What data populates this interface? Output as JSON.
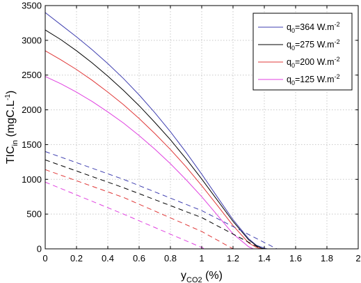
{
  "chart_data": {
    "type": "line",
    "xlabel": {
      "base": "y",
      "sub": "CO2",
      "tail": " (%)"
    },
    "ylabel": {
      "base": "TIC",
      "sub": "in",
      "mid": " (mgC.L",
      "sup": "-1",
      "tail": ")"
    },
    "xlim": [
      0,
      2
    ],
    "ylim": [
      0,
      3500
    ],
    "xticks": [
      "0",
      "0.2",
      "0.4",
      "0.6",
      "0.8",
      "1",
      "1.2",
      "1.4",
      "1.6",
      "1.8",
      "2"
    ],
    "yticks": [
      "0",
      "500",
      "1000",
      "1500",
      "2000",
      "2500",
      "3000",
      "3500"
    ],
    "grid": true,
    "legend_position": "top-right",
    "series": [
      {
        "name": "q0=364 W.m-2",
        "label": {
          "base": "q",
          "sub": "0",
          "mid": "=364 W.m",
          "sup": "-2"
        },
        "color": "#3f3fb0",
        "style": "solid",
        "x": [
          0,
          0.1,
          0.2,
          0.3,
          0.4,
          0.5,
          0.6,
          0.7,
          0.8,
          0.9,
          1.0,
          1.1,
          1.2,
          1.3,
          1.35,
          1.4,
          1.42,
          2.0
        ],
        "y": [
          3400,
          3225,
          3050,
          2865,
          2665,
          2450,
          2215,
          1960,
          1685,
          1390,
          1075,
          745,
          420,
          145,
          50,
          10,
          0,
          0
        ]
      },
      {
        "name": "q0=275 W.m-2",
        "label": {
          "base": "q",
          "sub": "0",
          "mid": "=275 W.m",
          "sup": "-2"
        },
        "color": "#000000",
        "style": "solid",
        "x": [
          0,
          0.1,
          0.2,
          0.3,
          0.4,
          0.5,
          0.6,
          0.7,
          0.8,
          0.9,
          1.0,
          1.1,
          1.2,
          1.3,
          1.35,
          1.38,
          1.4,
          2.0
        ],
        "y": [
          3150,
          3010,
          2850,
          2675,
          2485,
          2280,
          2060,
          1820,
          1570,
          1295,
          1005,
          700,
          395,
          130,
          45,
          10,
          0,
          0
        ]
      },
      {
        "name": "q0=200 W.m-2",
        "label": {
          "base": "q",
          "sub": "0",
          "mid": "=200 W.m",
          "sup": "-2"
        },
        "color": "#e03838",
        "style": "solid",
        "x": [
          0,
          0.1,
          0.2,
          0.3,
          0.4,
          0.5,
          0.6,
          0.7,
          0.8,
          0.9,
          1.0,
          1.1,
          1.2,
          1.3,
          1.35,
          1.38,
          2.0
        ],
        "y": [
          2850,
          2720,
          2580,
          2425,
          2255,
          2075,
          1875,
          1660,
          1430,
          1180,
          910,
          625,
          335,
          85,
          20,
          0,
          0
        ]
      },
      {
        "name": "q0=125 W.m-2",
        "label": {
          "base": "q",
          "sub": "0",
          "mid": "=125 W.m",
          "sup": "-2"
        },
        "color": "#e040e0",
        "style": "solid",
        "x": [
          0,
          0.1,
          0.2,
          0.3,
          0.4,
          0.5,
          0.6,
          0.7,
          0.8,
          0.9,
          1.0,
          1.1,
          1.2,
          1.3,
          1.33,
          2.0
        ],
        "y": [
          2480,
          2375,
          2255,
          2120,
          1970,
          1810,
          1630,
          1435,
          1225,
          995,
          750,
          485,
          215,
          30,
          0,
          0
        ]
      },
      {
        "name": "",
        "color": "#3f3fb0",
        "style": "dashed",
        "x": [
          0,
          0.5,
          1.0,
          1.48,
          2.0
        ],
        "y": [
          1400,
          1000,
          550,
          0,
          0
        ]
      },
      {
        "name": "",
        "color": "#000000",
        "style": "dashed",
        "x": [
          0,
          0.5,
          1.0,
          1.38,
          2.0
        ],
        "y": [
          1280,
          880,
          450,
          0,
          0
        ]
      },
      {
        "name": "",
        "color": "#e03838",
        "style": "dashed",
        "x": [
          0,
          0.5,
          1.0,
          1.2,
          2.0
        ],
        "y": [
          1140,
          740,
          250,
          0,
          0
        ]
      },
      {
        "name": "",
        "color": "#e040e0",
        "style": "dashed",
        "x": [
          0,
          0.5,
          1.02,
          2.0
        ],
        "y": [
          960,
          500,
          0,
          0
        ]
      }
    ]
  }
}
